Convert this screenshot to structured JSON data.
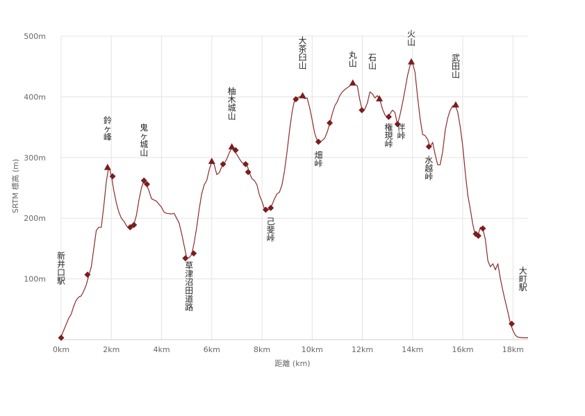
{
  "chart_data": {
    "type": "line",
    "xlabel": "距離 (km)",
    "ylabel": "SRTM 標高 (m)",
    "xlim": [
      0,
      18.6
    ],
    "ylim": [
      0,
      500
    ],
    "x_ticks": [
      0,
      2,
      4,
      6,
      8,
      10,
      12,
      14,
      16,
      18
    ],
    "x_tick_labels": [
      "0km",
      "2km",
      "4km",
      "6km",
      "8km",
      "10km",
      "12km",
      "14km",
      "16km",
      "18km"
    ],
    "y_ticks": [
      100,
      200,
      300,
      400,
      500
    ],
    "y_tick_labels": [
      "100m",
      "200m",
      "300m",
      "400m",
      "500m"
    ],
    "grid": true,
    "line_color": "#8b2a2a",
    "marker_color": "#7a1e1e",
    "profile": [
      [
        0.0,
        5
      ],
      [
        0.1,
        15
      ],
      [
        0.2,
        25
      ],
      [
        0.3,
        35
      ],
      [
        0.4,
        42
      ],
      [
        0.5,
        55
      ],
      [
        0.6,
        65
      ],
      [
        0.7,
        70
      ],
      [
        0.8,
        72
      ],
      [
        0.9,
        80
      ],
      [
        1.0,
        90
      ],
      [
        1.1,
        105
      ],
      [
        1.2,
        120
      ],
      [
        1.3,
        150
      ],
      [
        1.4,
        180
      ],
      [
        1.5,
        185
      ],
      [
        1.6,
        185
      ],
      [
        1.7,
        220
      ],
      [
        1.8,
        260
      ],
      [
        1.9,
        285
      ],
      [
        2.0,
        270
      ],
      [
        2.1,
        245
      ],
      [
        2.2,
        225
      ],
      [
        2.3,
        210
      ],
      [
        2.4,
        200
      ],
      [
        2.5,
        195
      ],
      [
        2.6,
        188
      ],
      [
        2.7,
        183
      ],
      [
        2.8,
        186
      ],
      [
        2.9,
        190
      ],
      [
        3.0,
        205
      ],
      [
        3.1,
        230
      ],
      [
        3.2,
        250
      ],
      [
        3.3,
        262
      ],
      [
        3.4,
        255
      ],
      [
        3.5,
        245
      ],
      [
        3.6,
        232
      ],
      [
        3.8,
        228
      ],
      [
        4.0,
        218
      ],
      [
        4.1,
        210
      ],
      [
        4.2,
        208
      ],
      [
        4.4,
        207
      ],
      [
        4.5,
        208
      ],
      [
        4.6,
        200
      ],
      [
        4.7,
        192
      ],
      [
        4.8,
        175
      ],
      [
        4.9,
        155
      ],
      [
        5.0,
        135
      ],
      [
        5.1,
        135
      ],
      [
        5.2,
        140
      ],
      [
        5.3,
        160
      ],
      [
        5.4,
        185
      ],
      [
        5.5,
        215
      ],
      [
        5.6,
        240
      ],
      [
        5.7,
        255
      ],
      [
        5.8,
        262
      ],
      [
        5.9,
        280
      ],
      [
        6.0,
        293
      ],
      [
        6.1,
        288
      ],
      [
        6.2,
        272
      ],
      [
        6.3,
        275
      ],
      [
        6.4,
        285
      ],
      [
        6.5,
        290
      ],
      [
        6.6,
        298
      ],
      [
        6.7,
        308
      ],
      [
        6.8,
        316
      ],
      [
        6.9,
        310
      ],
      [
        7.0,
        305
      ],
      [
        7.1,
        298
      ],
      [
        7.2,
        292
      ],
      [
        7.3,
        290
      ],
      [
        7.4,
        288
      ],
      [
        7.5,
        275
      ],
      [
        7.6,
        265
      ],
      [
        7.7,
        262
      ],
      [
        7.8,
        255
      ],
      [
        7.9,
        238
      ],
      [
        8.0,
        228
      ],
      [
        8.1,
        215
      ],
      [
        8.2,
        213
      ],
      [
        8.3,
        215
      ],
      [
        8.4,
        222
      ],
      [
        8.5,
        232
      ],
      [
        8.6,
        240
      ],
      [
        8.7,
        243
      ],
      [
        8.8,
        255
      ],
      [
        8.9,
        278
      ],
      [
        9.0,
        310
      ],
      [
        9.1,
        345
      ],
      [
        9.2,
        375
      ],
      [
        9.3,
        395
      ],
      [
        9.4,
        398
      ],
      [
        9.5,
        400
      ],
      [
        9.6,
        402
      ],
      [
        9.7,
        397
      ],
      [
        9.8,
        398
      ],
      [
        9.9,
        382
      ],
      [
        10.0,
        362
      ],
      [
        10.1,
        340
      ],
      [
        10.2,
        328
      ],
      [
        10.3,
        325
      ],
      [
        10.4,
        328
      ],
      [
        10.5,
        332
      ],
      [
        10.6,
        342
      ],
      [
        10.7,
        356
      ],
      [
        10.8,
        372
      ],
      [
        10.9,
        385
      ],
      [
        11.0,
        392
      ],
      [
        11.1,
        402
      ],
      [
        11.2,
        408
      ],
      [
        11.3,
        412
      ],
      [
        11.4,
        415
      ],
      [
        11.5,
        418
      ],
      [
        11.6,
        422
      ],
      [
        11.7,
        420
      ],
      [
        11.8,
        418
      ],
      [
        11.9,
        395
      ],
      [
        12.0,
        377
      ],
      [
        12.1,
        380
      ],
      [
        12.2,
        390
      ],
      [
        12.3,
        408
      ],
      [
        12.4,
        405
      ],
      [
        12.5,
        398
      ],
      [
        12.6,
        402
      ],
      [
        12.7,
        395
      ],
      [
        12.8,
        380
      ],
      [
        12.9,
        370
      ],
      [
        13.0,
        366
      ],
      [
        13.1,
        372
      ],
      [
        13.2,
        378
      ],
      [
        13.3,
        374
      ],
      [
        13.4,
        354
      ],
      [
        13.5,
        370
      ],
      [
        13.6,
        390
      ],
      [
        13.7,
        412
      ],
      [
        13.8,
        435
      ],
      [
        13.9,
        452
      ],
      [
        14.0,
        456
      ],
      [
        14.1,
        440
      ],
      [
        14.2,
        400
      ],
      [
        14.3,
        365
      ],
      [
        14.4,
        338
      ],
      [
        14.5,
        336
      ],
      [
        14.6,
        330
      ],
      [
        14.7,
        317
      ],
      [
        14.8,
        325
      ],
      [
        14.9,
        305
      ],
      [
        15.0,
        288
      ],
      [
        15.1,
        288
      ],
      [
        15.2,
        310
      ],
      [
        15.3,
        345
      ],
      [
        15.4,
        365
      ],
      [
        15.5,
        378
      ],
      [
        15.6,
        385
      ],
      [
        15.7,
        386
      ],
      [
        15.8,
        375
      ],
      [
        15.9,
        350
      ],
      [
        16.0,
        318
      ],
      [
        16.1,
        275
      ],
      [
        16.2,
        238
      ],
      [
        16.3,
        215
      ],
      [
        16.4,
        190
      ],
      [
        16.5,
        172
      ],
      [
        16.6,
        171
      ],
      [
        16.7,
        185
      ],
      [
        16.8,
        182
      ],
      [
        16.9,
        165
      ],
      [
        17.0,
        130
      ],
      [
        17.1,
        120
      ],
      [
        17.2,
        125
      ],
      [
        17.3,
        115
      ],
      [
        17.4,
        125
      ],
      [
        17.5,
        100
      ],
      [
        17.6,
        80
      ],
      [
        17.7,
        62
      ],
      [
        17.8,
        45
      ],
      [
        17.9,
        26
      ],
      [
        18.0,
        15
      ],
      [
        18.1,
        7
      ],
      [
        18.2,
        4
      ],
      [
        18.4,
        3
      ],
      [
        18.6,
        3
      ]
    ],
    "markers": [
      {
        "x": 0.0,
        "y": 3,
        "shape": "diamond"
      },
      {
        "x": 1.05,
        "y": 107,
        "shape": "diamond"
      },
      {
        "x": 1.85,
        "y": 284,
        "shape": "triangle"
      },
      {
        "x": 2.05,
        "y": 269,
        "shape": "diamond"
      },
      {
        "x": 2.75,
        "y": 185,
        "shape": "diamond"
      },
      {
        "x": 2.9,
        "y": 189,
        "shape": "diamond"
      },
      {
        "x": 3.3,
        "y": 262,
        "shape": "diamond"
      },
      {
        "x": 3.42,
        "y": 256,
        "shape": "diamond"
      },
      {
        "x": 4.95,
        "y": 134,
        "shape": "diamond"
      },
      {
        "x": 5.28,
        "y": 142,
        "shape": "diamond"
      },
      {
        "x": 6.0,
        "y": 294,
        "shape": "triangle"
      },
      {
        "x": 6.45,
        "y": 289,
        "shape": "diamond"
      },
      {
        "x": 6.8,
        "y": 318,
        "shape": "triangle"
      },
      {
        "x": 6.95,
        "y": 312,
        "shape": "diamond"
      },
      {
        "x": 7.35,
        "y": 289,
        "shape": "diamond"
      },
      {
        "x": 7.45,
        "y": 276,
        "shape": "diamond"
      },
      {
        "x": 8.15,
        "y": 214,
        "shape": "diamond"
      },
      {
        "x": 8.35,
        "y": 217,
        "shape": "diamond"
      },
      {
        "x": 9.35,
        "y": 396,
        "shape": "diamond"
      },
      {
        "x": 9.62,
        "y": 402,
        "shape": "triangle"
      },
      {
        "x": 10.25,
        "y": 326,
        "shape": "diamond"
      },
      {
        "x": 10.7,
        "y": 357,
        "shape": "diamond"
      },
      {
        "x": 11.62,
        "y": 423,
        "shape": "triangle"
      },
      {
        "x": 11.98,
        "y": 378,
        "shape": "diamond"
      },
      {
        "x": 12.68,
        "y": 397,
        "shape": "triangle"
      },
      {
        "x": 13.05,
        "y": 367,
        "shape": "diamond"
      },
      {
        "x": 13.4,
        "y": 355,
        "shape": "diamond"
      },
      {
        "x": 13.95,
        "y": 458,
        "shape": "triangle"
      },
      {
        "x": 14.65,
        "y": 318,
        "shape": "diamond"
      },
      {
        "x": 15.72,
        "y": 387,
        "shape": "triangle"
      },
      {
        "x": 16.52,
        "y": 174,
        "shape": "diamond"
      },
      {
        "x": 16.62,
        "y": 171,
        "shape": "diamond"
      },
      {
        "x": 16.8,
        "y": 183,
        "shape": "diamond"
      },
      {
        "x": 17.95,
        "y": 26,
        "shape": "diamond"
      }
    ],
    "annotations": [
      {
        "text": "新井口駅",
        "x": 0.0,
        "y": 92,
        "position": "above"
      },
      {
        "text": "鈴ヶ峰",
        "x": 1.85,
        "y": 329,
        "position": "above"
      },
      {
        "text": "鬼ヶ城山",
        "x": 3.3,
        "y": 303,
        "position": "above"
      },
      {
        "text": "草津沼田道路",
        "x": 5.1,
        "y": 117,
        "position": "below"
      },
      {
        "text": "柚木城山",
        "x": 6.8,
        "y": 363,
        "position": "above"
      },
      {
        "text": "己斐峠",
        "x": 8.35,
        "y": 190,
        "position": "below"
      },
      {
        "text": "大茶臼山",
        "x": 9.62,
        "y": 447,
        "position": "above"
      },
      {
        "text": "畑峠",
        "x": 10.25,
        "y": 299,
        "position": "below"
      },
      {
        "text": "丸山",
        "x": 11.62,
        "y": 450,
        "position": "above"
      },
      {
        "text": "石山",
        "x": 12.4,
        "y": 446,
        "position": "above"
      },
      {
        "text": "権現峠",
        "x": 13.05,
        "y": 345,
        "position": "below"
      },
      {
        "text": "伴峠",
        "x": 13.55,
        "y": 345,
        "position": "below"
      },
      {
        "text": "火山",
        "x": 13.95,
        "y": 485,
        "position": "above"
      },
      {
        "text": "水越峠",
        "x": 14.65,
        "y": 291,
        "position": "below"
      },
      {
        "text": "武田山",
        "x": 15.72,
        "y": 432,
        "position": "above"
      },
      {
        "text": "大町駅",
        "x": 18.4,
        "y": 81,
        "position": "above"
      }
    ]
  }
}
